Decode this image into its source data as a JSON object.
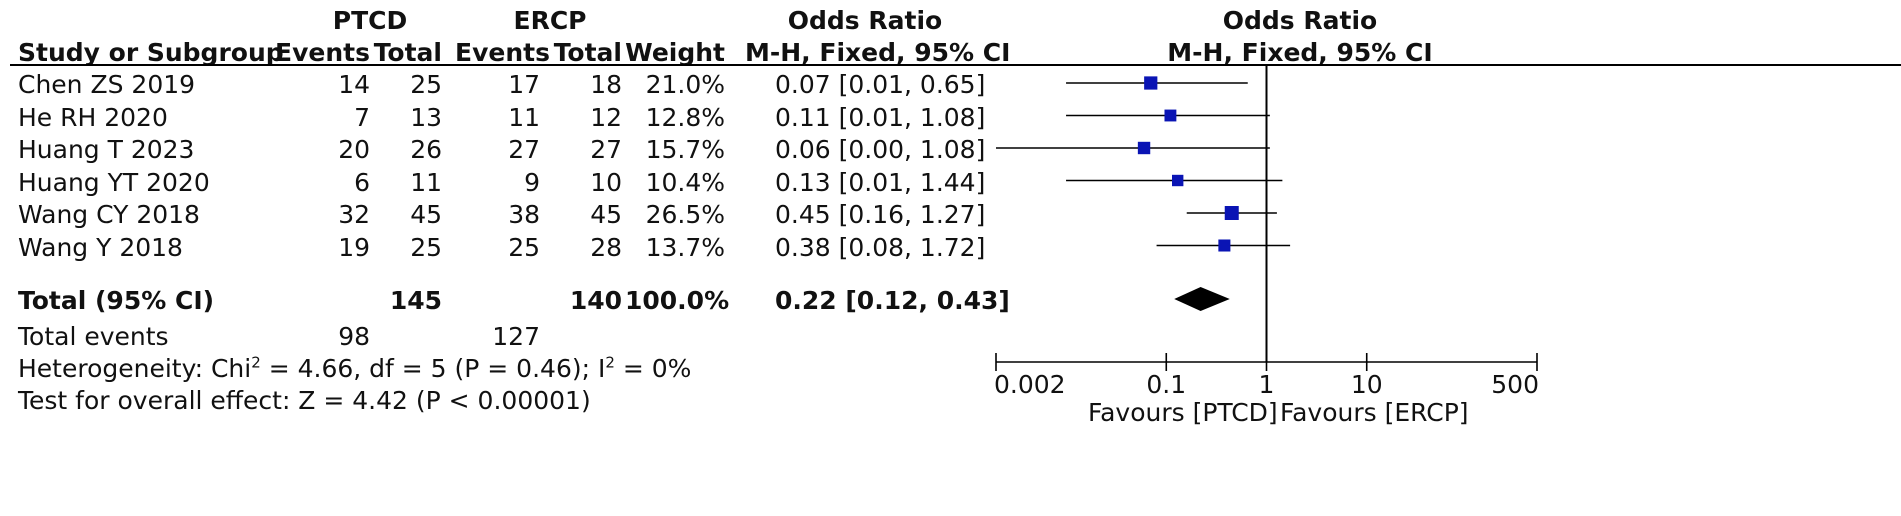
{
  "header": {
    "group1": "PTCD",
    "group2": "ERCP",
    "or_title": "Odds Ratio",
    "plot_title": "Odds Ratio",
    "plot_subtitle": "M-H, Fixed, 95% CI",
    "col_study": "Study or Subgroup",
    "col_events1": "Events",
    "col_total1": "Total",
    "col_events2": "Events",
    "col_total2": "Total",
    "col_weight": "Weight",
    "col_or": "M-H, Fixed, 95% CI"
  },
  "total": {
    "label": "Total (95% CI)",
    "total1": "145",
    "total2": "140",
    "weight": "100.0%",
    "ci": "0.22 [0.12, 0.43]"
  },
  "events": {
    "label": "Total events",
    "e1": "98",
    "e2": "127"
  },
  "heterogeneity": {
    "prefix": "Heterogeneity: Chi",
    "sup1": "2",
    "middle": " = 4.66, df = 5 (P = 0.46); I",
    "sup2": "2",
    "suffix": " = 0%"
  },
  "overall": "Test for overall effect: Z = 4.42 (P < 0.00001)",
  "axis": {
    "ticks": [
      "0.002",
      "0.1",
      "1",
      "10",
      "500"
    ],
    "favours_left": "Favours [PTCD]",
    "favours_right": "Favours [ERCP]"
  },
  "colors": {
    "marker": "#0a14b4",
    "line": "#000000"
  },
  "chart_data": {
    "type": "forest",
    "scale": "log",
    "xlim": [
      0.002,
      500
    ],
    "null_value": 1,
    "studies": [
      {
        "name": "Chen ZS 2019",
        "e1": 14,
        "t1": 25,
        "e2": 17,
        "t2": 18,
        "weight": "21.0%",
        "or": 0.07,
        "lo": 0.01,
        "hi": 0.65,
        "ci_text": "0.07 [0.01, 0.65]"
      },
      {
        "name": "He RH 2020",
        "e1": 7,
        "t1": 13,
        "e2": 11,
        "t2": 12,
        "weight": "12.8%",
        "or": 0.11,
        "lo": 0.01,
        "hi": 1.08,
        "ci_text": "0.11 [0.01, 1.08]"
      },
      {
        "name": "Huang T 2023",
        "e1": 20,
        "t1": 26,
        "e2": 27,
        "t2": 27,
        "weight": "15.7%",
        "or": 0.06,
        "lo": 0.0,
        "hi": 1.08,
        "ci_text": "0.06 [0.00, 1.08]"
      },
      {
        "name": "Huang YT 2020",
        "e1": 6,
        "t1": 11,
        "e2": 9,
        "t2": 10,
        "weight": "10.4%",
        "or": 0.13,
        "lo": 0.01,
        "hi": 1.44,
        "ci_text": "0.13 [0.01, 1.44]"
      },
      {
        "name": "Wang CY 2018",
        "e1": 32,
        "t1": 45,
        "e2": 38,
        "t2": 45,
        "weight": "26.5%",
        "or": 0.45,
        "lo": 0.16,
        "hi": 1.27,
        "ci_text": "0.45 [0.16, 1.27]"
      },
      {
        "name": "Wang Y 2018",
        "e1": 19,
        "t1": 25,
        "e2": 25,
        "t2": 28,
        "weight": "13.7%",
        "or": 0.38,
        "lo": 0.08,
        "hi": 1.72,
        "ci_text": "0.38 [0.08, 1.72]"
      }
    ],
    "pooled": {
      "or": 0.22,
      "lo": 0.12,
      "hi": 0.43
    }
  }
}
